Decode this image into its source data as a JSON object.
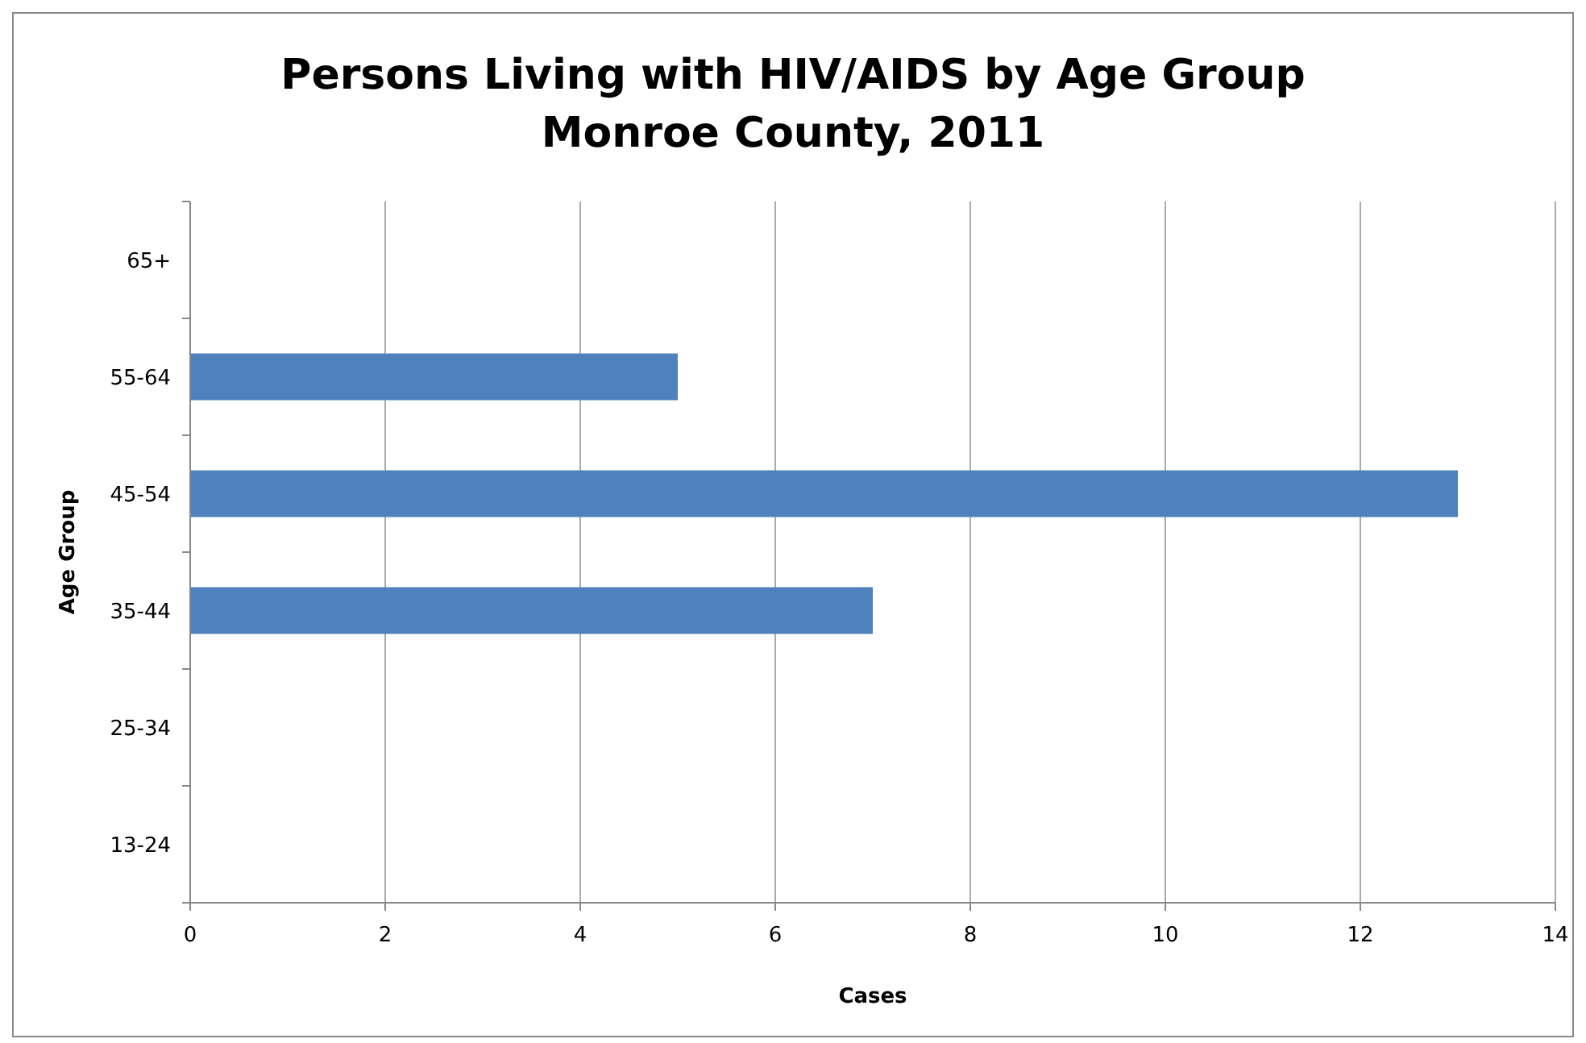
{
  "chart_data": {
    "type": "bar",
    "orientation": "horizontal",
    "title": "Persons Living with HIV/AIDS by Age Group\nMonroe County, 2011",
    "xlabel": "Cases",
    "ylabel": "Age Group",
    "categories": [
      "65+",
      "55-64",
      "45-54",
      "35-44",
      "25-34",
      "13-24"
    ],
    "values": [
      0,
      5,
      13,
      7,
      0,
      0
    ],
    "color": "#4f81bd",
    "xlim": [
      0,
      14
    ],
    "xticks": [
      0,
      2,
      4,
      6,
      8,
      10,
      12,
      14
    ],
    "grid": "x"
  }
}
